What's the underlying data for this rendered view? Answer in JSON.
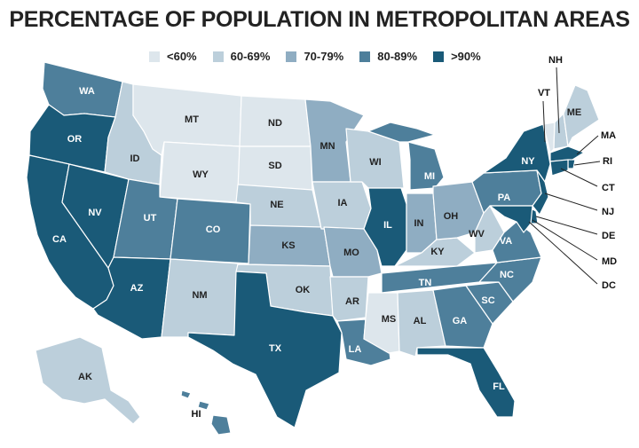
{
  "title": "PERCENTAGE OF POPULATION IN METROPOLITAN AREAS",
  "colors": {
    "lt60": "#dde6ec",
    "c60_69": "#bccfdb",
    "c70_79": "#8fadc2",
    "c80_89": "#4e7f9b",
    "gt90": "#1a5a78",
    "border": "#ffffff"
  },
  "legend": [
    {
      "label": "<60%",
      "bin": "lt60"
    },
    {
      "label": "60-69%",
      "bin": "c60_69"
    },
    {
      "label": "70-79%",
      "bin": "c70_79"
    },
    {
      "label": "80-89%",
      "bin": "c80_89"
    },
    {
      "label": ">90%",
      "bin": "gt90"
    }
  ],
  "states": [
    {
      "abbr": "WA",
      "bin": "c80_89"
    },
    {
      "abbr": "OR",
      "bin": "gt90"
    },
    {
      "abbr": "CA",
      "bin": "gt90"
    },
    {
      "abbr": "NV",
      "bin": "gt90"
    },
    {
      "abbr": "ID",
      "bin": "c60_69"
    },
    {
      "abbr": "MT",
      "bin": "lt60"
    },
    {
      "abbr": "WY",
      "bin": "lt60"
    },
    {
      "abbr": "UT",
      "bin": "c80_89"
    },
    {
      "abbr": "AZ",
      "bin": "gt90"
    },
    {
      "abbr": "CO",
      "bin": "c80_89"
    },
    {
      "abbr": "NM",
      "bin": "c60_69"
    },
    {
      "abbr": "ND",
      "bin": "lt60"
    },
    {
      "abbr": "SD",
      "bin": "lt60"
    },
    {
      "abbr": "NE",
      "bin": "c60_69"
    },
    {
      "abbr": "KS",
      "bin": "c70_79"
    },
    {
      "abbr": "OK",
      "bin": "c60_69"
    },
    {
      "abbr": "TX",
      "bin": "gt90"
    },
    {
      "abbr": "MN",
      "bin": "c70_79"
    },
    {
      "abbr": "IA",
      "bin": "c60_69"
    },
    {
      "abbr": "MO",
      "bin": "c70_79"
    },
    {
      "abbr": "AR",
      "bin": "c60_69"
    },
    {
      "abbr": "LA",
      "bin": "c80_89"
    },
    {
      "abbr": "WI",
      "bin": "c60_69"
    },
    {
      "abbr": "IL",
      "bin": "gt90"
    },
    {
      "abbr": "MS",
      "bin": "lt60"
    },
    {
      "abbr": "MI",
      "bin": "c80_89"
    },
    {
      "abbr": "IN",
      "bin": "c70_79"
    },
    {
      "abbr": "KY",
      "bin": "c60_69"
    },
    {
      "abbr": "TN",
      "bin": "c80_89"
    },
    {
      "abbr": "AL",
      "bin": "c60_69"
    },
    {
      "abbr": "OH",
      "bin": "c70_79"
    },
    {
      "abbr": "WV",
      "bin": "c60_69"
    },
    {
      "abbr": "GA",
      "bin": "c80_89"
    },
    {
      "abbr": "FL",
      "bin": "gt90"
    },
    {
      "abbr": "SC",
      "bin": "c80_89"
    },
    {
      "abbr": "NC",
      "bin": "c80_89"
    },
    {
      "abbr": "VA",
      "bin": "c80_89"
    },
    {
      "abbr": "PA",
      "bin": "c80_89"
    },
    {
      "abbr": "NY",
      "bin": "gt90"
    },
    {
      "abbr": "VT",
      "bin": "lt60"
    },
    {
      "abbr": "NH",
      "bin": "c60_69"
    },
    {
      "abbr": "ME",
      "bin": "c60_69"
    },
    {
      "abbr": "MA",
      "bin": "gt90"
    },
    {
      "abbr": "RI",
      "bin": "gt90"
    },
    {
      "abbr": "CT",
      "bin": "gt90"
    },
    {
      "abbr": "NJ",
      "bin": "gt90"
    },
    {
      "abbr": "DE",
      "bin": "gt90"
    },
    {
      "abbr": "MD",
      "bin": "gt90"
    },
    {
      "abbr": "DC",
      "bin": "gt90"
    },
    {
      "abbr": "AK",
      "bin": "c60_69"
    },
    {
      "abbr": "HI",
      "bin": "c80_89"
    }
  ]
}
